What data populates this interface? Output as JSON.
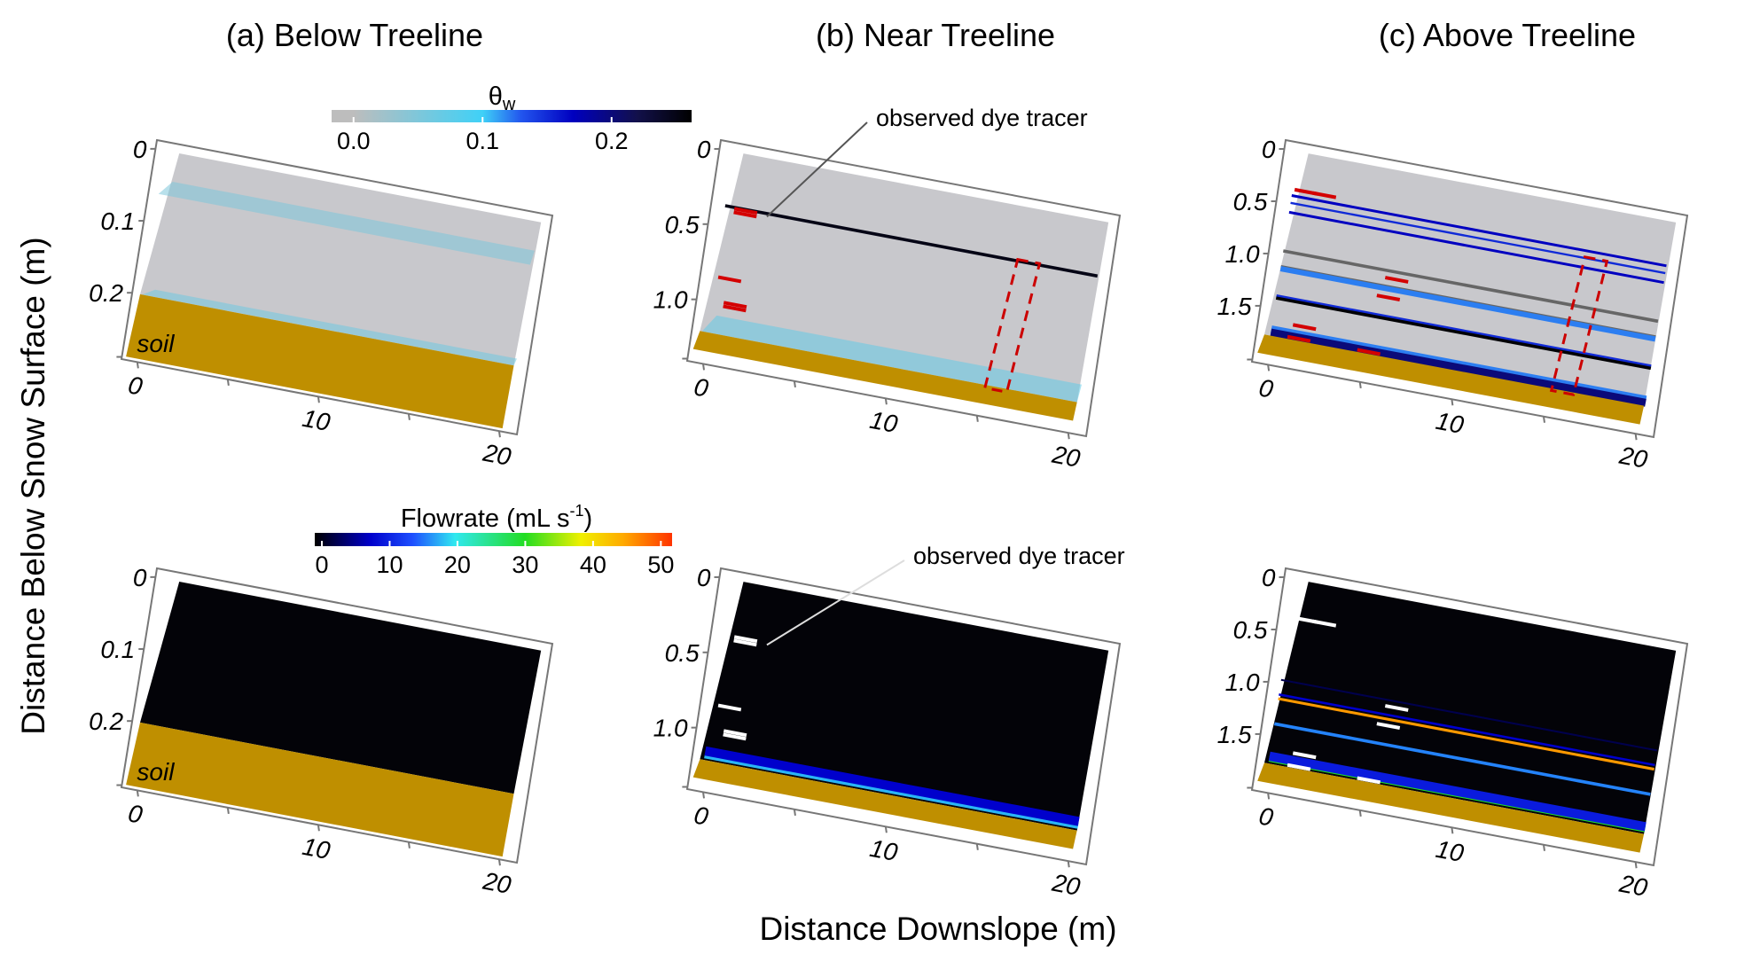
{
  "figure": {
    "ylabel": "Distance Below Snow Surface (m)",
    "xlabel": "Distance Downslope (m)"
  },
  "colorbars": {
    "theta": {
      "label_main": "θ",
      "label_sub": "w",
      "ticks": [
        "0.0",
        "0.1",
        "0.2"
      ],
      "tick_values": [
        0.0,
        0.1,
        0.2
      ],
      "range": [
        -0.017,
        0.262
      ],
      "stops": [
        {
          "v": 0.0,
          "color": "#bdbdbd"
        },
        {
          "v": 0.1,
          "color": "#3fd1f7"
        },
        {
          "v": 0.13,
          "color": "#2255ee"
        },
        {
          "v": 0.17,
          "color": "#0000c0"
        },
        {
          "v": 0.22,
          "color": "#12104a"
        },
        {
          "v": 0.262,
          "color": "#000000"
        }
      ]
    },
    "flowrate": {
      "label": "Flowrate (mL s",
      "label_sup": "-1",
      "label_end": ")",
      "ticks": [
        "0",
        "10",
        "20",
        "30",
        "40",
        "50"
      ],
      "tick_values": [
        0,
        10,
        20,
        30,
        40,
        50
      ],
      "range": [
        0,
        51
      ],
      "stops": [
        {
          "v": 0,
          "color": "#000000"
        },
        {
          "v": 8,
          "color": "#0000cc"
        },
        {
          "v": 14,
          "color": "#1e50ff"
        },
        {
          "v": 20,
          "color": "#30e8f0"
        },
        {
          "v": 30,
          "color": "#22dd22"
        },
        {
          "v": 38,
          "color": "#f0f000"
        },
        {
          "v": 44,
          "color": "#ffaa00"
        },
        {
          "v": 51,
          "color": "#ff3300"
        }
      ]
    }
  },
  "colors": {
    "soil": "#bf8f00",
    "snow_dry": "#c8c8cc",
    "tracer_top": "#d40000",
    "tracer_bottom": "#ffffff",
    "frame": "#777777",
    "flow_bg": "#030308"
  },
  "panels": [
    {
      "id": "a",
      "title": "(a) Below Treeline",
      "depth_ticks": [
        "0",
        "0.1",
        "0.2"
      ],
      "depth_tick_values": [
        0,
        0.1,
        0.2
      ],
      "depth_range": [
        0,
        0.28
      ],
      "distance_ticks": [
        "0",
        "10",
        "20"
      ],
      "distance_tick_values": [
        0,
        10,
        20
      ],
      "snow_depth_m": 0.2,
      "soil_label": "soil",
      "theta_bands": [
        {
          "depth_from": 0.04,
          "depth_to": 0.06,
          "theta": 0.05
        },
        {
          "depth_from": 0.19,
          "depth_to": 0.2,
          "theta": 0.06
        }
      ],
      "flow_lines": [],
      "tracers": [],
      "dye_box": null,
      "annotation": null
    },
    {
      "id": "b",
      "title": "(b) Near Treeline",
      "depth_ticks": [
        "0",
        "0.5",
        "1.0"
      ],
      "depth_tick_values": [
        0,
        0.5,
        1.0
      ],
      "depth_range": [
        0,
        1.35
      ],
      "distance_ticks": [
        "0",
        "10",
        "20"
      ],
      "distance_tick_values": [
        0,
        10,
        20
      ],
      "snow_depth_m": 1.2,
      "soil_label": "",
      "theta_lines": [
        {
          "depth": 0.36,
          "theta": 0.25,
          "width_m": 0.012
        }
      ],
      "theta_bands": [
        {
          "depth_from": 1.08,
          "depth_to": 1.2,
          "theta": 0.07
        }
      ],
      "flow_lines": [
        {
          "depth": 1.17,
          "flow": 18,
          "width_m": 0.025
        },
        {
          "depth": 1.14,
          "flow": 8,
          "width_m": 0.04
        }
      ],
      "tracers": [
        {
          "x": 0.4,
          "depth": 0.38,
          "len": 1.0,
          "double": true
        },
        {
          "x": 0.1,
          "depth": 0.83,
          "len": 1.0,
          "double": false
        },
        {
          "x": 0.6,
          "depth": 1.0,
          "len": 1.0,
          "double": true
        }
      ],
      "dye_box": {
        "x_from": 15.2,
        "x_to": 16.4,
        "depth_from": 0.35,
        "depth_to": 1.22
      },
      "annotation": {
        "text": "observed dye tracer",
        "target_x": 1.4,
        "target_depth": 0.38
      }
    },
    {
      "id": "c",
      "title": "(c) Above Treeline",
      "depth_ticks": [
        "0",
        "0.5",
        "1.0",
        "1.5"
      ],
      "depth_tick_values": [
        0,
        0.5,
        1.0,
        1.5
      ],
      "depth_range": [
        0,
        1.95
      ],
      "distance_ticks": [
        "0",
        "10",
        "20"
      ],
      "distance_tick_values": [
        0,
        10,
        20
      ],
      "snow_depth_m": 1.76,
      "soil_label": "",
      "theta_lines": [
        {
          "depth": 0.42,
          "theta": 0.17,
          "width_m": 0.01
        },
        {
          "depth": 0.49,
          "theta": 0.15,
          "width_m": 0.008
        },
        {
          "depth": 0.58,
          "theta": 0.17,
          "width_m": 0.01
        },
        {
          "depth": 0.95,
          "theta": 0.0,
          "gray": true,
          "width_m": 0.012
        },
        {
          "depth": 1.1,
          "theta": 0.0,
          "gray": true,
          "width_m": 0.012
        },
        {
          "depth": 1.12,
          "theta": 0.12,
          "width_m": 0.02
        },
        {
          "depth": 1.38,
          "theta": 0.15,
          "width_m": 0.012
        },
        {
          "depth": 1.4,
          "theta": 0.26,
          "width_m": 0.012
        },
        {
          "depth": 1.7,
          "theta": 0.12,
          "width_m": 0.03
        },
        {
          "depth": 1.73,
          "theta": 0.2,
          "width_m": 0.03
        }
      ],
      "theta_bands": [],
      "flow_lines": [
        {
          "depth": 0.96,
          "flow": 3,
          "width_m": 0.008
        },
        {
          "depth": 1.1,
          "flow": 8,
          "width_m": 0.01
        },
        {
          "depth": 1.14,
          "flow": 45,
          "width_m": 0.012
        },
        {
          "depth": 1.38,
          "flow": 16,
          "width_m": 0.014
        },
        {
          "depth": 1.71,
          "flow": 30,
          "width_m": 0.03
        },
        {
          "depth": 1.69,
          "flow": 10,
          "width_m": 0.04
        }
      ],
      "tracers": [
        {
          "x": 0.0,
          "depth": 0.36,
          "len": 1.0,
          "double": false
        },
        {
          "x": 1.0,
          "depth": 0.36,
          "len": 1.0,
          "double": false
        },
        {
          "x": 5.5,
          "depth": 1.02,
          "len": 1.0,
          "double": false
        },
        {
          "x": 5.2,
          "depth": 1.2,
          "len": 1.0,
          "double": false
        },
        {
          "x": 1.0,
          "depth": 1.62,
          "len": 1.0,
          "double": false
        },
        {
          "x": 0.8,
          "depth": 1.74,
          "len": 1.0,
          "double": false
        },
        {
          "x": 4.6,
          "depth": 1.74,
          "len": 1.0,
          "double": false
        }
      ],
      "dye_box": {
        "x_from": 15.2,
        "x_to": 16.4,
        "depth_from": 0.48,
        "depth_to": 1.78
      },
      "annotation": null
    }
  ]
}
